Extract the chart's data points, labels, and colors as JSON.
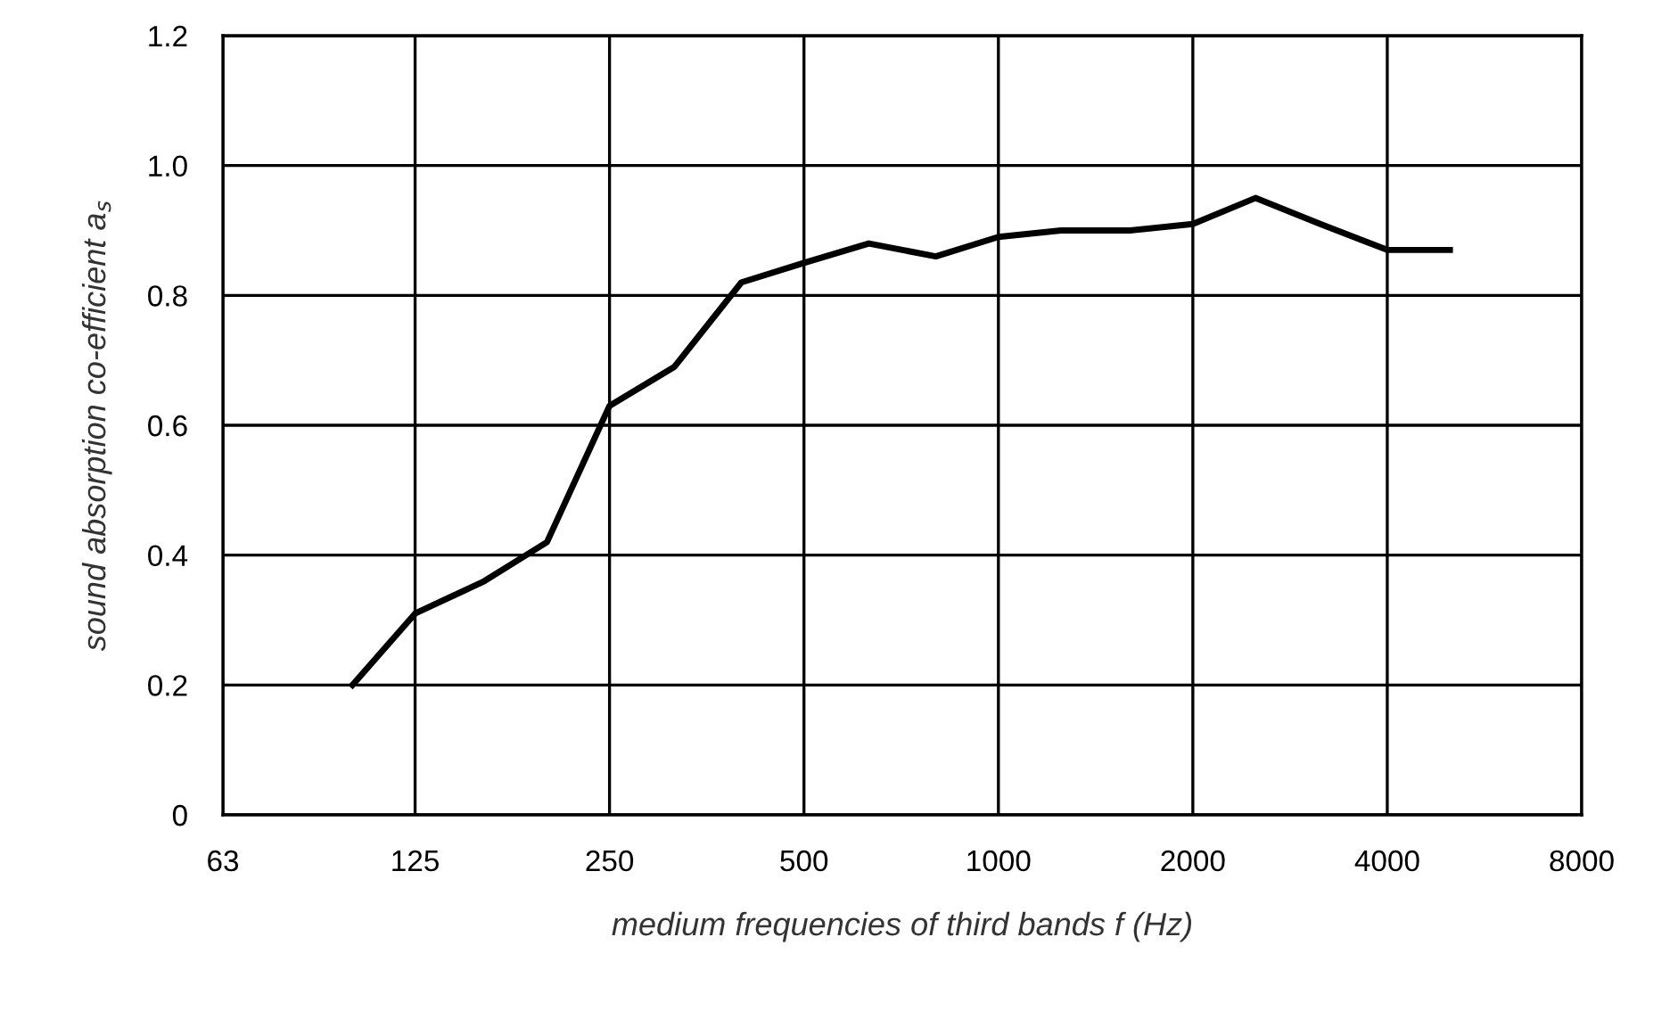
{
  "chart_data": {
    "type": "line",
    "xlabel": "medium frequencies of third bands f (Hz)",
    "ylabel": "sound absorption co-efficient a$_{s}$",
    "x": [
      100,
      125,
      160,
      200,
      250,
      315,
      400,
      500,
      630,
      800,
      1000,
      1250,
      1600,
      2000,
      2500,
      3150,
      4000,
      5000
    ],
    "series": [
      {
        "color": "#000000",
        "values": [
          0.2,
          0.31,
          0.36,
          0.42,
          0.63,
          0.69,
          0.82,
          0.85,
          0.88,
          0.86,
          0.89,
          0.9,
          0.9,
          0.91,
          0.95,
          0.91,
          0.87,
          0.87
        ]
      }
    ],
    "log": "x",
    "xlim": [
      63,
      8000
    ],
    "xticks": [
      63,
      125,
      250,
      500,
      1000,
      2000,
      4000,
      8000
    ],
    "ylim": [
      0,
      1.2
    ],
    "yticks": [
      0,
      0.2,
      0.4,
      0.6,
      0.8,
      {
        "value": 1,
        "label": "1.0"
      },
      1.2
    ],
    "grid": true,
    "marker": "none",
    "line_style": "solid"
  }
}
